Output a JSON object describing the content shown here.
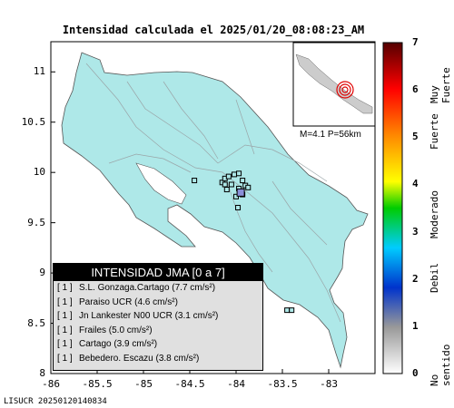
{
  "title": "Intensidad calculada el 2025/01/20_08:08:23_AM",
  "footer_id": "LISUCR 20250120140834",
  "axes": {
    "x_ticks": [
      "-86",
      "-85.5",
      "-85",
      "-84.5",
      "-84",
      "-83.5",
      "-83"
    ],
    "y_ticks": [
      "11",
      "10.5",
      "10",
      "9.5",
      "9",
      "8.5",
      "8"
    ]
  },
  "inset": {
    "info": "M=4.1 P=56km"
  },
  "legend": {
    "header": "INTENSIDAD JMA [0 a 7]",
    "rows": [
      {
        "level": "[ 1 ]",
        "station": "S.L. Gonzaga.Cartago (7.7 cm/s²)"
      },
      {
        "level": "[ 1 ]",
        "station": "Paraiso UCR (4.6 cm/s²)"
      },
      {
        "level": "[ 1 ]",
        "station": "Jn Lankester N00 UCR (3.1 cm/s²)"
      },
      {
        "level": "[ 1 ]",
        "station": "Frailes (5.0 cm/s²)"
      },
      {
        "level": "[ 1 ]",
        "station": "Cartago (3.9 cm/s²)"
      },
      {
        "level": "[ 1 ]",
        "station": "Bebedero. Escazu (3.8 cm/s²)"
      }
    ]
  },
  "colorbar": {
    "ticks": [
      "7",
      "6",
      "5",
      "4",
      "3",
      "2",
      "1",
      "0"
    ],
    "categories": [
      "Muy Fuerte",
      "Fuerte",
      "Moderado",
      "Debil",
      "No sentido"
    ],
    "colors": {
      "top": "#550000",
      "red": "#ff0000",
      "orange": "#ff8800",
      "yellow": "#ffff00",
      "green": "#00cc00",
      "cyan": "#00ccff",
      "blue": "#0033cc",
      "gray": "#999999",
      "bottom": "#ffffff"
    }
  },
  "map_colors": {
    "land": "#aee8e8",
    "sea": "#ffffff",
    "border": "#000000",
    "station_box": "#000000"
  },
  "chart_data": {
    "type": "scatter",
    "title": "Intensidad calculada el 2025/01/20_08:08:23_AM",
    "xlim": [
      -86,
      -82.5
    ],
    "ylim": [
      8,
      11.3
    ],
    "epicenter": {
      "lon": -83.95,
      "lat": 9.8
    },
    "stations": [
      {
        "lon": -84.45,
        "lat": 9.92,
        "intensity": 1
      },
      {
        "lon": -84.15,
        "lat": 9.9,
        "intensity": 1
      },
      {
        "lon": -84.12,
        "lat": 9.94,
        "intensity": 1
      },
      {
        "lon": -84.08,
        "lat": 9.96,
        "intensity": 1
      },
      {
        "lon": -84.05,
        "lat": 9.88,
        "intensity": 1
      },
      {
        "lon": -84.02,
        "lat": 9.98,
        "intensity": 1
      },
      {
        "lon": -83.97,
        "lat": 9.99,
        "intensity": 1
      },
      {
        "lon": -83.93,
        "lat": 9.92,
        "intensity": 1
      },
      {
        "lon": -83.9,
        "lat": 9.87,
        "intensity": 1
      },
      {
        "lon": -83.87,
        "lat": 9.85,
        "intensity": 1
      },
      {
        "lon": -83.97,
        "lat": 9.84,
        "intensity": 1
      },
      {
        "lon": -84.1,
        "lat": 9.83,
        "intensity": 1
      },
      {
        "lon": -83.93,
        "lat": 9.78,
        "intensity": 1
      },
      {
        "lon": -84.0,
        "lat": 9.76,
        "intensity": 1
      },
      {
        "lon": -83.98,
        "lat": 9.65,
        "intensity": 1
      },
      {
        "lon": -84.12,
        "lat": 9.88,
        "intensity": 1
      },
      {
        "lon": -83.45,
        "lat": 8.63,
        "intensity": 1
      },
      {
        "lon": -83.4,
        "lat": 8.63,
        "intensity": 1
      }
    ]
  }
}
